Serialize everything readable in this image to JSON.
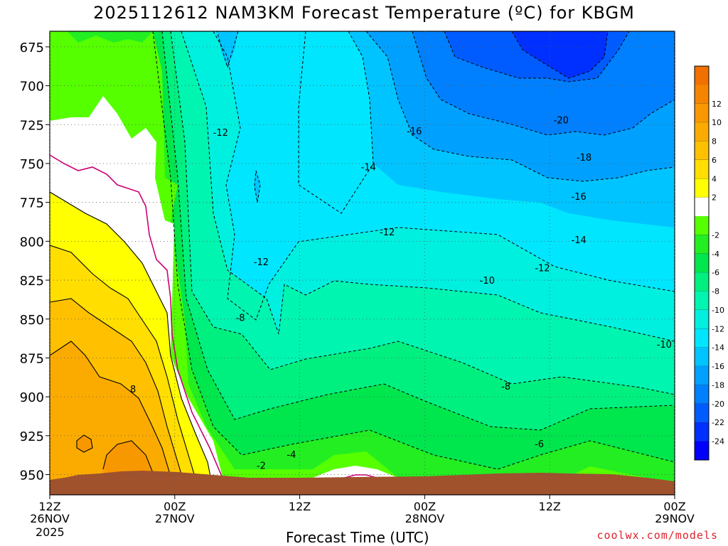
{
  "title": "2025112612 NAM3KM Forecast Temperature (ºC) for KBGM",
  "credit": "coolwx.com/models",
  "colors": {
    "ground": "#a0522d",
    "freezing_line": "#cc0077",
    "contour": "#000000"
  },
  "chart_data": {
    "type": "contour",
    "title": "2025112612 NAM3KM Forecast Temperature (ºC) for KBGM",
    "xlabel": "Forecast Time (UTC)",
    "ylabel": "",
    "x_units": "hours from 12Z 26NOV 2025",
    "xlim": [
      0,
      60
    ],
    "y_units": "hPa",
    "ylim": [
      665,
      963
    ],
    "y_ticks": [
      675,
      700,
      725,
      750,
      775,
      800,
      825,
      850,
      875,
      900,
      925,
      950
    ],
    "x_ticks": [
      {
        "hour": 0,
        "line1": "12Z",
        "line2": "26NOV",
        "line3": "2025"
      },
      {
        "hour": 12,
        "line1": "00Z",
        "line2": "27NOV",
        "line3": ""
      },
      {
        "hour": 24,
        "line1": "12Z",
        "line2": "",
        "line3": ""
      },
      {
        "hour": 36,
        "line1": "00Z",
        "line2": "28NOV",
        "line3": ""
      },
      {
        "hour": 48,
        "line1": "12Z",
        "line2": "",
        "line3": ""
      },
      {
        "hour": 60,
        "line1": "00Z",
        "line2": "29NOV",
        "line3": ""
      }
    ],
    "grid": true,
    "colorbar": {
      "placement": "right",
      "levels": [
        {
          "label": "",
          "color": "#f07000"
        },
        {
          "label": "12",
          "color": "#f58500"
        },
        {
          "label": "10",
          "color": "#f89800"
        },
        {
          "label": "8",
          "color": "#fbab00"
        },
        {
          "label": "6",
          "color": "#ffc000"
        },
        {
          "label": "4",
          "color": "#ffde00"
        },
        {
          "label": "2",
          "color": "#ffff00"
        },
        {
          "label": "",
          "color": "#ffffff"
        },
        {
          "label": "-2",
          "color": "#55ff00"
        },
        {
          "label": "-4",
          "color": "#22ee22"
        },
        {
          "label": "-6",
          "color": "#00e64d"
        },
        {
          "label": "-8",
          "color": "#00f080"
        },
        {
          "label": "-10",
          "color": "#00f5b0"
        },
        {
          "label": "-12",
          "color": "#00f0e0"
        },
        {
          "label": "-14",
          "color": "#00e6ff"
        },
        {
          "label": "-16",
          "color": "#00c4ff"
        },
        {
          "label": "-18",
          "color": "#00a0ff"
        },
        {
          "label": "-20",
          "color": "#0080ff"
        },
        {
          "label": "-22",
          "color": "#005cff"
        },
        {
          "label": "-24",
          "color": "#0030ff"
        },
        {
          "label": "",
          "color": "#0000ff"
        }
      ]
    },
    "contour_labels": [
      {
        "text": "-12",
        "hour": 16.4,
        "hPa": 730
      },
      {
        "text": "-16",
        "hour": 35.0,
        "hPa": 729
      },
      {
        "text": "-20",
        "hour": 49.1,
        "hPa": 722
      },
      {
        "text": "-18",
        "hour": 51.3,
        "hPa": 746
      },
      {
        "text": "-14",
        "hour": 30.6,
        "hPa": 752
      },
      {
        "text": "-16",
        "hour": 50.8,
        "hPa": 771
      },
      {
        "text": "-12",
        "hour": 32.4,
        "hPa": 794
      },
      {
        "text": "-14",
        "hour": 50.8,
        "hPa": 799
      },
      {
        "text": "-12",
        "hour": 20.3,
        "hPa": 813
      },
      {
        "text": "-12",
        "hour": 47.3,
        "hPa": 817
      },
      {
        "text": "-10",
        "hour": 42.0,
        "hPa": 825
      },
      {
        "text": "-8",
        "hour": 18.3,
        "hPa": 849
      },
      {
        "text": "-10",
        "hour": 59.0,
        "hPa": 866
      },
      {
        "text": "8",
        "hour": 8.0,
        "hPa": 895
      },
      {
        "text": "-8",
        "hour": 43.8,
        "hPa": 893
      },
      {
        "text": "-6",
        "hour": 47.0,
        "hPa": 930
      },
      {
        "text": "-4",
        "hour": 23.2,
        "hPa": 937
      },
      {
        "text": "-2",
        "hour": 20.3,
        "hPa": 944
      }
    ]
  }
}
